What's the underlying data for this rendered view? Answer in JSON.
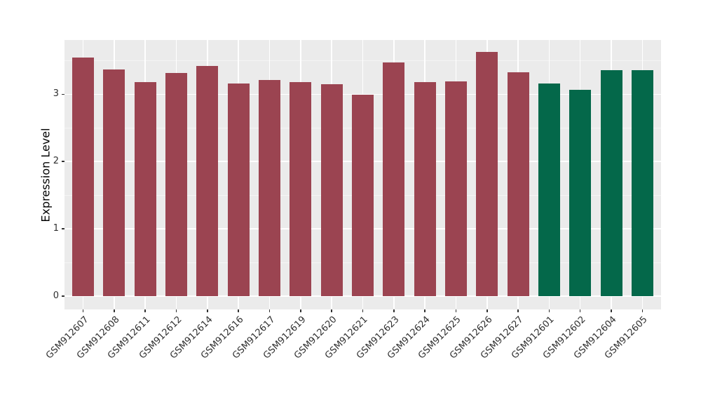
{
  "colors": {
    "figure_background": "#FFFFFF",
    "panel_background": "#EBEBEB",
    "grid_major": "#FFFFFF",
    "grid_minor": "#F5F5F5",
    "axis_text": "#303030",
    "axis_title": "#000000",
    "tick_marks": "#333333",
    "bar_red": "#9B4451",
    "bar_green": "#04684A"
  },
  "chart_data": {
    "type": "bar",
    "title": "",
    "xlabel": "",
    "ylabel": "Expression Level",
    "ylim": [
      0,
      3.8
    ],
    "yticks": [
      0,
      1,
      2,
      3
    ],
    "yticks_minor": [
      0.5,
      1.5,
      2.5,
      3.5
    ],
    "grid": "on",
    "legend": "none",
    "categories": [
      "GSM912607",
      "GSM912608",
      "GSM912611",
      "GSM912612",
      "GSM912614",
      "GSM912616",
      "GSM912617",
      "GSM912619",
      "GSM912620",
      "GSM912621",
      "GSM912623",
      "GSM912624",
      "GSM912625",
      "GSM912626",
      "GSM912627",
      "GSM912601",
      "GSM912602",
      "GSM912604",
      "GSM912605"
    ],
    "values": [
      3.55,
      3.37,
      3.18,
      3.32,
      3.42,
      3.16,
      3.21,
      3.18,
      3.15,
      2.99,
      3.47,
      3.18,
      3.19,
      3.63,
      3.33,
      3.16,
      3.07,
      3.36,
      3.36
    ],
    "bar_colors": [
      "#9B4451",
      "#9B4451",
      "#9B4451",
      "#9B4451",
      "#9B4451",
      "#9B4451",
      "#9B4451",
      "#9B4451",
      "#9B4451",
      "#9B4451",
      "#9B4451",
      "#9B4451",
      "#9B4451",
      "#9B4451",
      "#9B4451",
      "#04684A",
      "#04684A",
      "#04684A",
      "#04684A"
    ]
  }
}
